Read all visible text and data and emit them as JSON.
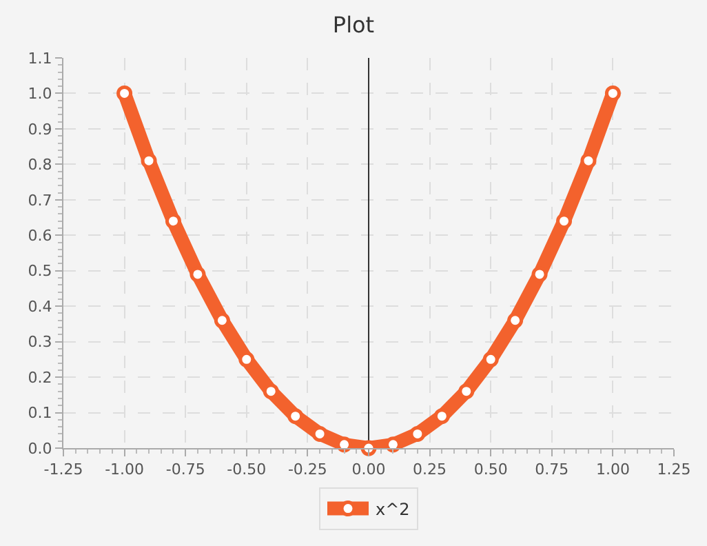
{
  "chart_data": {
    "type": "line",
    "title": "Plot",
    "x": [
      -1.0,
      -0.9,
      -0.8,
      -0.7,
      -0.6,
      -0.5,
      -0.4,
      -0.3,
      -0.2,
      -0.1,
      0.0,
      0.1,
      0.2,
      0.3,
      0.4,
      0.5,
      0.6,
      0.7,
      0.8,
      0.9,
      1.0
    ],
    "series": [
      {
        "name": "x^2",
        "color": "#f3622d",
        "values": [
          1.0,
          0.81,
          0.64,
          0.49,
          0.36,
          0.25,
          0.16,
          0.09,
          0.04,
          0.01,
          0.0,
          0.01,
          0.04,
          0.09,
          0.16,
          0.25,
          0.36,
          0.49,
          0.64,
          0.81,
          1.0
        ]
      }
    ],
    "xlim": [
      -1.25,
      1.25
    ],
    "xticks": [
      {
        "value": -1.25,
        "label": "-1.25"
      },
      {
        "value": -1.0,
        "label": "-1.00"
      },
      {
        "value": -0.75,
        "label": "-0.75"
      },
      {
        "value": -0.5,
        "label": "-0.50"
      },
      {
        "value": -0.25,
        "label": "-0.25"
      },
      {
        "value": 0,
        "label": "0.00"
      },
      {
        "value": 0.25,
        "label": "0.25"
      },
      {
        "value": 0.5,
        "label": "0.50"
      },
      {
        "value": 0.75,
        "label": "0.75"
      },
      {
        "value": 1.0,
        "label": "1.00"
      },
      {
        "value": 1.25,
        "label": "1.25"
      }
    ],
    "ylim": [
      0,
      1.1
    ],
    "yticks": [
      {
        "value": 0,
        "label": "0.0"
      },
      0.1,
      0.2,
      0.3,
      0.4,
      0.5,
      0.6,
      0.7,
      0.8,
      0.9,
      {
        "value": 1.0,
        "label": "1.0"
      },
      1.1
    ],
    "grid": true,
    "legend": "bottom",
    "marker": "circle",
    "line_style": "solid"
  }
}
